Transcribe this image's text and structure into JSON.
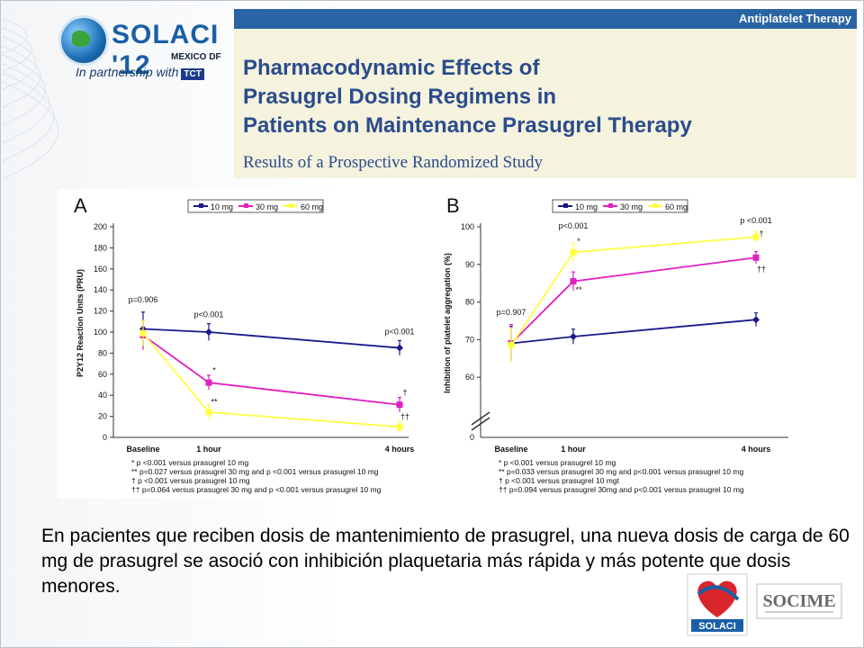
{
  "header": {
    "brand": "SOLACI '12",
    "brand_sub": "MEXICO DF",
    "partner_text": "In partnership with",
    "partner_logo": "TCT"
  },
  "title": {
    "tag": "Antiplatelet Therapy",
    "line1": "Pharmacodynamic Effects of",
    "line2": "Prasugrel Dosing Regimens in",
    "line3": "Patients on Maintenance Prasugrel Therapy",
    "subtitle": "Results of a Prospective Randomized Study"
  },
  "chart_data": [
    {
      "type": "line",
      "panel_label": "A",
      "ylabel": "P2Y12 Reaction Units (PRU)",
      "categories": [
        "Baseline",
        "1 hour",
        "4 hours"
      ],
      "ylim": [
        0,
        200
      ],
      "yticks": [
        "0",
        "20",
        "40",
        "60",
        "80",
        "100",
        "120",
        "140",
        "160",
        "180",
        "200"
      ],
      "series": [
        {
          "name": "10 mg",
          "color": "#1a1a8a",
          "values": [
            103,
            100,
            85
          ],
          "err": [
            16,
            8,
            7
          ]
        },
        {
          "name": "30 mg",
          "color": "#e020c0",
          "values": [
            97,
            52,
            31
          ],
          "err": [
            14,
            7,
            7
          ]
        },
        {
          "name": "60 mg",
          "color": "#ffff40",
          "values": [
            99,
            24,
            10
          ],
          "err": [
            12,
            7,
            6
          ]
        }
      ],
      "annotations": [
        {
          "text": "p=0.906",
          "cat": 0,
          "y": 128
        },
        {
          "text": "p<0.001",
          "cat": 1,
          "y": 114
        },
        {
          "text": "p<0.001",
          "cat": 2,
          "y": 98
        },
        {
          "text": "*",
          "cat": 1,
          "y": 61
        },
        {
          "text": "**",
          "cat": 1,
          "y": 31
        },
        {
          "text": "†",
          "cat": 2,
          "y": 40
        },
        {
          "text": "††",
          "cat": 2,
          "y": 17
        }
      ],
      "footnotes": [
        "* p <0.001 versus prasugrel 10 mg",
        "** p=0.027 versus prasugrel 30 mg and p <0.001 versus prasugrel 10 mg",
        "† p <0.001 versus prasugrel 10 mg",
        "†† p=0.064 versus prasugrel 30 mg and p <0.001 versus prasugrel 10 mg"
      ]
    },
    {
      "type": "line",
      "panel_label": "B",
      "ylabel": "Inhibition of platelet aggregation (%)",
      "categories": [
        "Baseline",
        "1 hour",
        "4 hours"
      ],
      "ylim": [
        55,
        100
      ],
      "yticks": [
        "60",
        "70",
        "80",
        "90",
        "100"
      ],
      "axis_break_label": "0",
      "series": [
        {
          "name": "10 mg",
          "color": "#1a1a8a",
          "values": [
            69,
            70.8,
            75.3
          ],
          "err": [
            4.5,
            2,
            1.8
          ]
        },
        {
          "name": "30 mg",
          "color": "#e020c0",
          "values": [
            69,
            85.5,
            91.8
          ],
          "err": [
            5,
            2.5,
            1.6
          ]
        },
        {
          "name": "60 mg",
          "color": "#ffff40",
          "values": [
            68.5,
            93.2,
            97.3
          ],
          "err": [
            4.5,
            2.5,
            1.5
          ]
        }
      ],
      "annotations": [
        {
          "text": "p=0.907",
          "cat": 0,
          "y": 76.5
        },
        {
          "text": "p<0.001",
          "cat": 1,
          "y": 99.5
        },
        {
          "text": "p <0.001",
          "cat": 2,
          "y": 101
        },
        {
          "text": "*",
          "cat": 1,
          "y": 95.5
        },
        {
          "text": "**",
          "cat": 1,
          "y": 82.5
        },
        {
          "text": "†",
          "cat": 2,
          "y": 97.5
        },
        {
          "text": "††",
          "cat": 2,
          "y": 88
        }
      ],
      "footnotes": [
        "* p <0.001 versus prasugrel 10 mg",
        "** p=0.033 versus prasugrel 30 mg and p<0.001 versus prasugrel 10 mg",
        "† p <0.001 versus prasugrel 10 mgt",
        "†† p=0.094 versus prasugrel 30mg and p<0.001 versus prasugrel 10 mg"
      ]
    }
  ],
  "body_text": "En pacientes que reciben dosis de mantenimiento de prasugrel, una nueva dosis de carga de 60 mg de prasugrel se asoció con inhibición plaquetaria más rápida y más potente que dosis menores.",
  "footer_logos": {
    "solaci": "SOLACI",
    "socime": "SOCIME"
  },
  "colors": {
    "accent": "#2a64a4",
    "title_bg": "#f5f2de",
    "title_text": "#2b4c8c"
  }
}
